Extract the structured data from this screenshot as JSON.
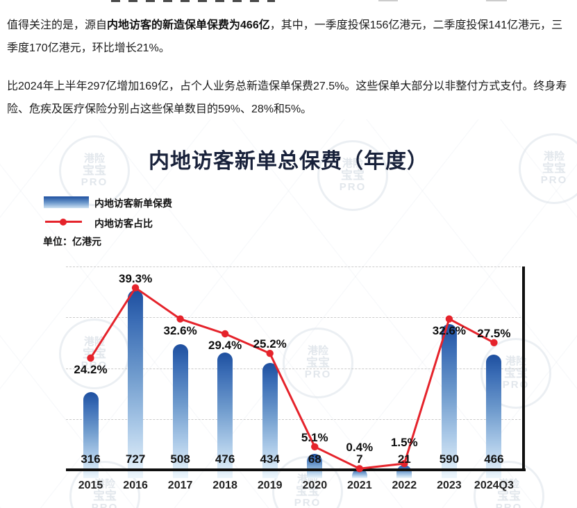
{
  "page": {
    "paragraph1": {
      "pre": "值得关注的是，源自",
      "bold": "内地访客的新造保单保费为466亿",
      "post": "，其中，一季度投保156亿港元，二季度投保141亿港元，三季度170亿港元，环比增长21%。"
    },
    "paragraph2": "比2024年上半年297亿增加169亿，占个人业务总新造保单保费27.5%。这些保单大部分以非整付方式支付。终身寿险、危疾及医疗保险分别占这些保单数目的59%、28%和5%。"
  },
  "chart": {
    "title": "内地访客新单总保费（年度）",
    "unit_label": "单位：亿港元",
    "legend": {
      "bars_label": "内地访客新单保费",
      "line_label": "内地访客占比"
    },
    "watermark_lines": [
      "港险",
      "宝宝",
      "PRO"
    ],
    "colors": {
      "bar_top": "#1e4f9f",
      "bar_bottom": "#d9e9f6",
      "line": "#e5232b",
      "title": "#18213a",
      "axis": "#0f0f0f",
      "gridline": "#cbcbcb"
    }
  },
  "chart_data": {
    "type": "bar",
    "categories": [
      "2015",
      "2016",
      "2017",
      "2018",
      "2019",
      "2020",
      "2021",
      "2022",
      "2023",
      "2024Q3"
    ],
    "series": [
      {
        "name": "内地访客新单保费",
        "type": "bar",
        "unit": "亿港元",
        "values": [
          316,
          727,
          508,
          476,
          434,
          68,
          7,
          21,
          590,
          466
        ]
      },
      {
        "name": "内地访客占比",
        "type": "line",
        "unit": "%",
        "values": [
          24.2,
          39.3,
          32.6,
          29.4,
          25.2,
          5.1,
          0.4,
          1.5,
          32.6,
          27.5
        ],
        "point_labels": [
          "24.2%",
          "39.3%",
          "32.6%",
          "29.4%",
          "25.2%",
          "5.1%",
          "0.4%",
          "1.5%",
          "32.6%",
          "27.5%"
        ],
        "label_positions": [
          "below",
          "above",
          "below",
          "below",
          "above",
          "above",
          "high",
          "high",
          "below",
          "above"
        ]
      }
    ],
    "title": "内地访客新单总保费（年度）",
    "xlabel": "",
    "ylabel": "亿港元",
    "grid": "horizontal-dashed",
    "legend_position": "top-left",
    "bar_value_labels_shown": true
  }
}
